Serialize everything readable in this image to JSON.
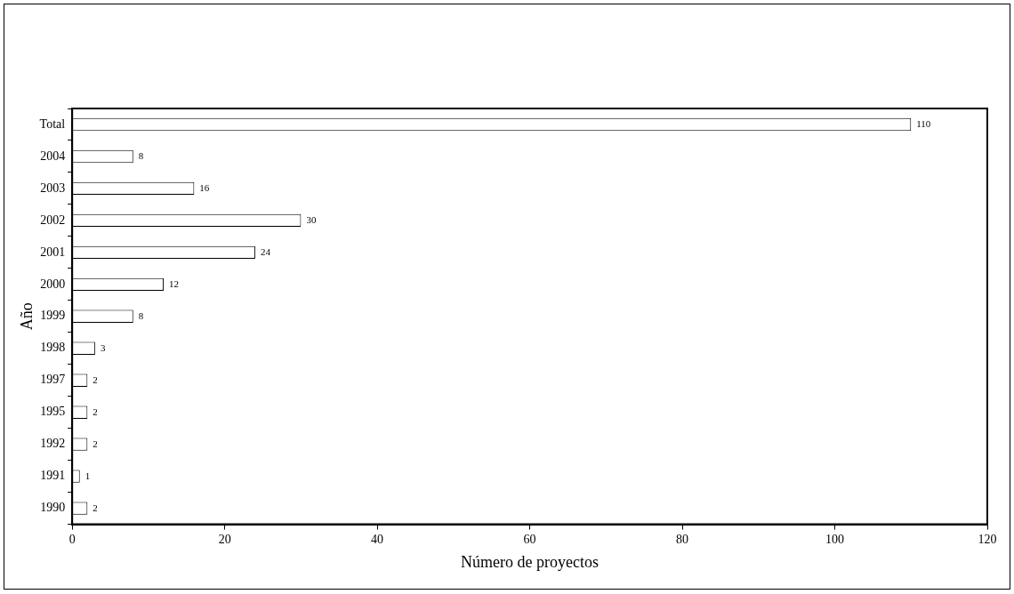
{
  "chart_data": {
    "type": "bar",
    "orientation": "horizontal",
    "xlabel": "Número de proyectos",
    "ylabel": "Año",
    "categories": [
      "Total",
      "2004",
      "2003",
      "2002",
      "2001",
      "2000",
      "1999",
      "1998",
      "1997",
      "1995",
      "1992",
      "1991",
      "1990"
    ],
    "values": [
      110,
      8,
      16,
      30,
      24,
      12,
      8,
      3,
      2,
      2,
      2,
      1,
      2
    ],
    "color": "#ffffff",
    "xlim": [
      0,
      120
    ],
    "xticks": [
      0,
      20,
      40,
      60,
      80,
      100,
      120
    ],
    "grid": false,
    "legend": false,
    "data_labels": true
  }
}
